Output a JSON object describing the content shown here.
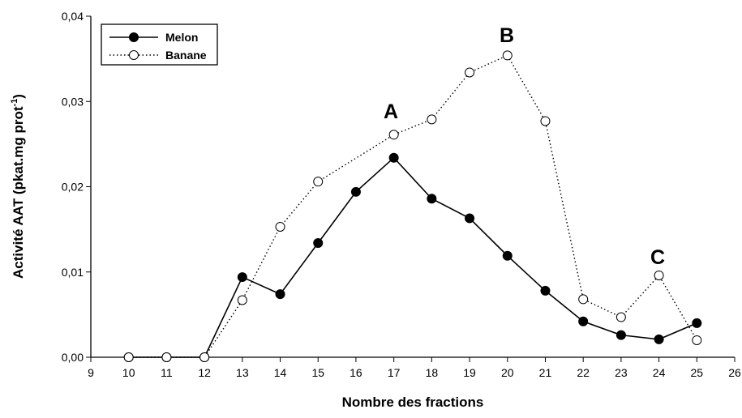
{
  "chart_data": {
    "type": "line",
    "xlabel": "Nombre des fractions",
    "ylabel": {
      "text": "Activité AAT (pkat.mg prot",
      "sup": "-1",
      "end": ")"
    },
    "xlim": [
      9,
      26
    ],
    "ylim": [
      0,
      0.04
    ],
    "xticks": [
      9,
      10,
      11,
      12,
      13,
      14,
      15,
      16,
      17,
      18,
      19,
      20,
      21,
      22,
      23,
      24,
      25,
      26
    ],
    "yticks": [
      {
        "value": 0,
        "label": "0,00"
      },
      {
        "value": 0.01,
        "label": "0,01"
      },
      {
        "value": 0.02,
        "label": "0,02"
      },
      {
        "value": 0.03,
        "label": "0,03"
      },
      {
        "value": 0.04,
        "label": "0,04"
      }
    ],
    "legend": "top-left",
    "series": [
      {
        "name": "Melon",
        "color": "#000000",
        "marker_fill": "#000000",
        "dash": "solid",
        "x": [
          10,
          11,
          12,
          13,
          14,
          15,
          16,
          17,
          18,
          19,
          20,
          21,
          22,
          23,
          24,
          25
        ],
        "values": [
          0,
          0,
          0,
          0.0094,
          0.0074,
          0.0134,
          0.0194,
          0.0234,
          0.0186,
          0.0163,
          0.0119,
          0.0078,
          0.0042,
          0.0026,
          0.0021,
          0.004
        ]
      },
      {
        "name": "Banane",
        "color": "#000000",
        "marker_fill": "#ffffff",
        "dash": "dotted",
        "x": [
          10,
          11,
          12,
          13,
          14,
          15,
          17,
          18,
          19,
          20,
          21,
          22,
          23,
          24,
          25
        ],
        "values": [
          0,
          0,
          0,
          0.0067,
          0.0153,
          0.0206,
          0.0261,
          0.0279,
          0.0334,
          0.0354,
          0.0277,
          0.0068,
          0.0047,
          0.0096,
          0.002
        ]
      }
    ],
    "annotations": [
      "A",
      "B",
      "C"
    ]
  }
}
